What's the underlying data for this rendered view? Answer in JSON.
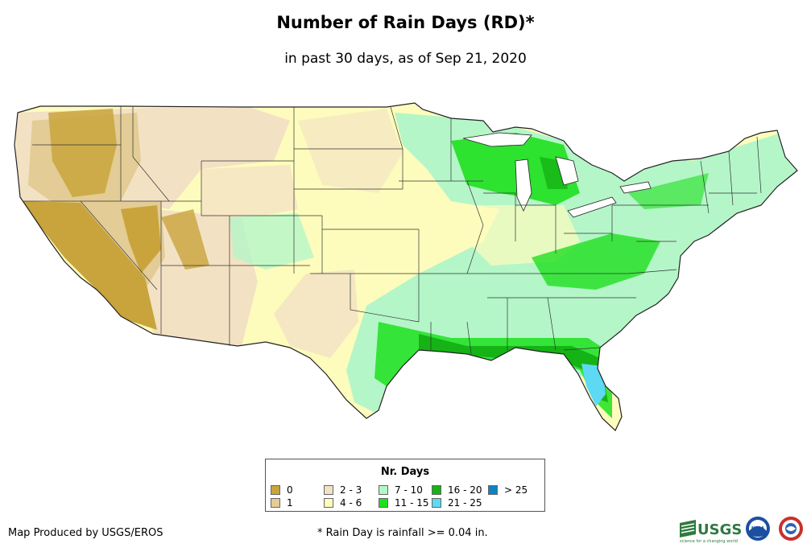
{
  "header": {
    "title": "Number of Rain Days (RD)*",
    "subtitle": "in past 30 days, as of Sep 21, 2020"
  },
  "legend": {
    "title": "Nr. Days",
    "items": [
      {
        "label": "0",
        "color": "#c9a43c"
      },
      {
        "label": "1",
        "color": "#e3cc95"
      },
      {
        "label": "2 - 3",
        "color": "#f3e1c4"
      },
      {
        "label": "4 - 6",
        "color": "#fdfcbc"
      },
      {
        "label": "7 - 10",
        "color": "#b4f6c8"
      },
      {
        "label": "11 - 15",
        "color": "#1fe01f"
      },
      {
        "label": "16 - 20",
        "color": "#15b315"
      },
      {
        "label": "21 - 25",
        "color": "#5dd9f4"
      },
      {
        "label": "> 25",
        "color": "#0d82c6"
      }
    ]
  },
  "footer": {
    "credit": "Map Produced by USGS/EROS",
    "footnote": "* Rain Day is rainfall >= 0.04 in."
  },
  "logos": {
    "usgs": "USGS",
    "usgs_tagline": "science for a changing world",
    "noaa": "NOAA"
  }
}
